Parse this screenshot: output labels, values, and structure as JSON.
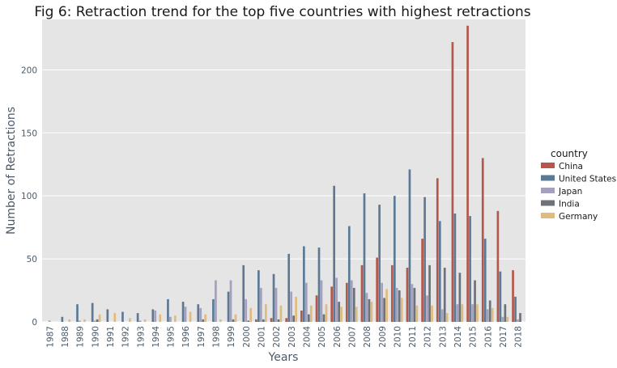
{
  "chart_data": {
    "type": "bar",
    "title": "Fig 6: Retraction trend for the top five countries with highest retractions",
    "xlabel": "Years",
    "ylabel": "Number of Retractions",
    "ylim": [
      0,
      240
    ],
    "yticks": [
      0,
      50,
      100,
      150,
      200
    ],
    "grid": true,
    "legend_title": "country",
    "legend_position": "right",
    "categories": [
      "1987",
      "1988",
      "1989",
      "1990",
      "1991",
      "1992",
      "1993",
      "1994",
      "1995",
      "1996",
      "1997",
      "1998",
      "1999",
      "2000",
      "2001",
      "2002",
      "2003",
      "2004",
      "2005",
      "2006",
      "2007",
      "2008",
      "2009",
      "2010",
      "2011",
      "2012",
      "2013",
      "2014",
      "2015",
      "2016",
      "2017",
      "2018"
    ],
    "series": [
      {
        "name": "China",
        "color": "#b5574b",
        "values": [
          0,
          0,
          0,
          0,
          0,
          0,
          0,
          0,
          0,
          0,
          0,
          0,
          0,
          0,
          2,
          3,
          3,
          9,
          21,
          28,
          31,
          45,
          51,
          45,
          43,
          66,
          114,
          222,
          235,
          130,
          88,
          41
        ]
      },
      {
        "name": "United States",
        "color": "#5c7a96",
        "values": [
          0,
          4,
          14,
          15,
          10,
          8,
          7,
          10,
          18,
          16,
          14,
          18,
          24,
          45,
          41,
          38,
          54,
          60,
          59,
          108,
          76,
          102,
          93,
          100,
          121,
          99,
          80,
          86,
          84,
          66,
          40,
          20
        ]
      },
      {
        "name": "Japan",
        "color": "#a4a0bd",
        "values": [
          1,
          0,
          1,
          1,
          0,
          0,
          1,
          9,
          4,
          12,
          11,
          33,
          33,
          18,
          27,
          27,
          24,
          31,
          33,
          35,
          33,
          23,
          31,
          27,
          30,
          21,
          10,
          14,
          14,
          10,
          4,
          2
        ]
      },
      {
        "name": "India",
        "color": "#6c7279",
        "values": [
          0,
          0,
          0,
          2,
          0,
          0,
          0,
          0,
          0,
          0,
          2,
          0,
          2,
          1,
          2,
          2,
          5,
          6,
          6,
          16,
          27,
          18,
          19,
          25,
          27,
          45,
          43,
          39,
          33,
          17,
          14,
          7
        ]
      },
      {
        "name": "Germany",
        "color": "#dfbc7e",
        "values": [
          0,
          2,
          2,
          6,
          7,
          3,
          2,
          6,
          5,
          8,
          6,
          2,
          6,
          11,
          14,
          13,
          20,
          13,
          14,
          12,
          12,
          16,
          26,
          19,
          13,
          13,
          7,
          14,
          14,
          11,
          4,
          0
        ]
      }
    ]
  }
}
